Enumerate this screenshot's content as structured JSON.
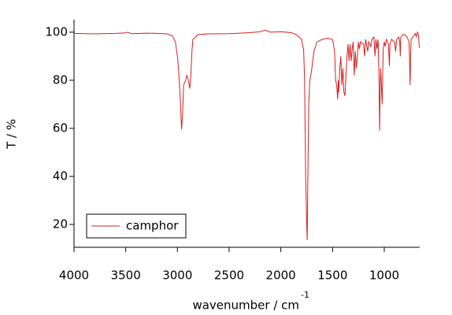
{
  "chart_data": {
    "type": "line",
    "xlabel": "wavenumber / cm",
    "xlabel_sup": "-1",
    "ylabel": "T / %",
    "xlim": [
      4000,
      657
    ],
    "ylim": [
      10.5,
      105.2
    ],
    "xticks": [
      4000,
      3500,
      3000,
      2500,
      2000,
      1500,
      1000
    ],
    "yticks": [
      20,
      40,
      60,
      80,
      100
    ],
    "legend": "lower left",
    "series": [
      {
        "name": "camphor",
        "color": "#d42020",
        "x": [
          4000,
          3800,
          3600,
          3500,
          3480,
          3450,
          3300,
          3200,
          3100,
          3050,
          3020,
          3000,
          2985,
          2970,
          2960,
          2950,
          2940,
          2930,
          2920,
          2910,
          2900,
          2890,
          2880,
          2870,
          2860,
          2850,
          2800,
          2700,
          2500,
          2300,
          2200,
          2150,
          2100,
          2000,
          1950,
          1900,
          1850,
          1800,
          1780,
          1770,
          1760,
          1750,
          1745,
          1740,
          1730,
          1720,
          1710,
          1700,
          1680,
          1650,
          1600,
          1550,
          1500,
          1480,
          1470,
          1460,
          1450,
          1445,
          1440,
          1430,
          1420,
          1410,
          1400,
          1390,
          1380,
          1370,
          1360,
          1350,
          1340,
          1330,
          1320,
          1310,
          1300,
          1290,
          1280,
          1270,
          1260,
          1250,
          1240,
          1230,
          1200,
          1190,
          1180,
          1160,
          1150,
          1130,
          1120,
          1100,
          1090,
          1080,
          1070,
          1060,
          1050,
          1045,
          1040,
          1035,
          1025,
          1020,
          1015,
          1010,
          1000,
          990,
          980,
          960,
          950,
          945,
          930,
          900,
          890,
          880,
          860,
          850,
          845,
          840,
          820,
          800,
          780,
          760,
          750,
          745,
          740,
          720,
          700,
          690,
          680,
          670,
          660
        ],
        "values": [
          99.5,
          99.3,
          99.5,
          99.7,
          100,
          99.4,
          99.6,
          99.5,
          99.3,
          98.5,
          96,
          90,
          82,
          70,
          59.5,
          66,
          78,
          79,
          80,
          82,
          81,
          79,
          76.5,
          82,
          92,
          97,
          99,
          99.3,
          99.4,
          99.8,
          100.2,
          100.8,
          100,
          100.2,
          100,
          99.8,
          99,
          97,
          93,
          80,
          40,
          20,
          13.5,
          35,
          70,
          80,
          82,
          85,
          92,
          96,
          97,
          97.5,
          97,
          92,
          80,
          78,
          72,
          80,
          75,
          85,
          90,
          78,
          85,
          75,
          73.5,
          82,
          90,
          95,
          88,
          95,
          88,
          93,
          96,
          82,
          92,
          85,
          90,
          96,
          93,
          96,
          95,
          90,
          97,
          92,
          96,
          94,
          97,
          98,
          90,
          97,
          93,
          97,
          80,
          59,
          75,
          85,
          75,
          70,
          82,
          93,
          96,
          94,
          97,
          95,
          86,
          95,
          97,
          96,
          92,
          97,
          98,
          96,
          90,
          98,
          99,
          99,
          98,
          96,
          78,
          90,
          97,
          98,
          99.5,
          98,
          100,
          99,
          93.5
        ]
      }
    ]
  }
}
